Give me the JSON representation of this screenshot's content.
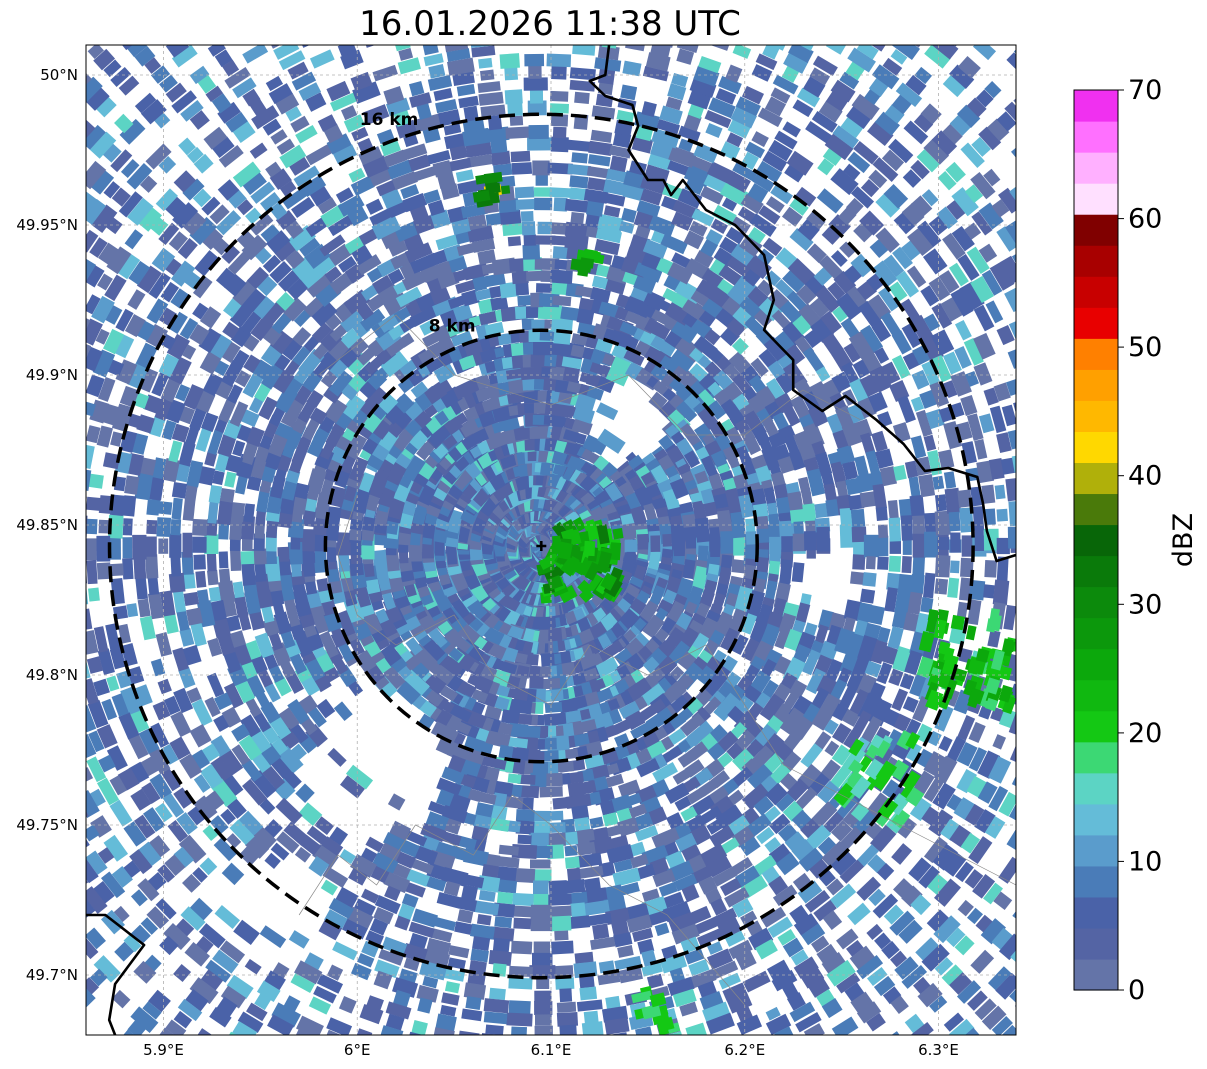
{
  "title": "16.01.2026 11:38 UTC",
  "map": {
    "lon_range": [
      5.86,
      6.34
    ],
    "lat_range": [
      49.68,
      50.01
    ],
    "radar_site": {
      "lon": 6.095,
      "lat": 49.843
    },
    "lat_ticks": [
      {
        "value": 50.0,
        "label": "50°N"
      },
      {
        "value": 49.95,
        "label": "49.95°N"
      },
      {
        "value": 49.9,
        "label": "49.9°N"
      },
      {
        "value": 49.85,
        "label": "49.85°N"
      },
      {
        "value": 49.8,
        "label": "49.8°N"
      },
      {
        "value": 49.75,
        "label": "49.75°N"
      },
      {
        "value": 49.7,
        "label": "49.7°N"
      }
    ],
    "lon_ticks": [
      {
        "value": 5.9,
        "label": "5.9°E"
      },
      {
        "value": 6.0,
        "label": "6°E"
      },
      {
        "value": 6.1,
        "label": "6.1°E"
      },
      {
        "value": 6.2,
        "label": "6.2°E"
      },
      {
        "value": 6.3,
        "label": "6.3°E"
      }
    ],
    "range_rings": [
      {
        "radius_km": 8,
        "label": "8 km"
      },
      {
        "radius_km": 16,
        "label": "16 km"
      }
    ],
    "grid": true,
    "colors": {
      "border": "#000000",
      "ring": "#000000",
      "grid": "#b0b0b0",
      "admin": "#888888"
    }
  },
  "colorbar": {
    "label": "dBZ",
    "min": 0,
    "max": 70,
    "tick_labels": [
      "0",
      "10",
      "20",
      "30",
      "40",
      "50",
      "60",
      "70"
    ],
    "colors": [
      "#6474a8",
      "#5464a4",
      "#4a62a8",
      "#4a7cb8",
      "#5a9ccc",
      "#64bcd8",
      "#5cd4c4",
      "#3cd874",
      "#14c814",
      "#10b810",
      "#0ca80c",
      "#0c980c",
      "#0c8a0c",
      "#0a7a0a",
      "#086608",
      "#4a7a0a",
      "#b0b00a",
      "#ffd800",
      "#ffb800",
      "#ffa000",
      "#ff8000",
      "#e80000",
      "#c80000",
      "#a80000",
      "#800000",
      "#ffe0ff",
      "#ffb0ff",
      "#ff70ff",
      "#f030f0"
    ]
  }
}
